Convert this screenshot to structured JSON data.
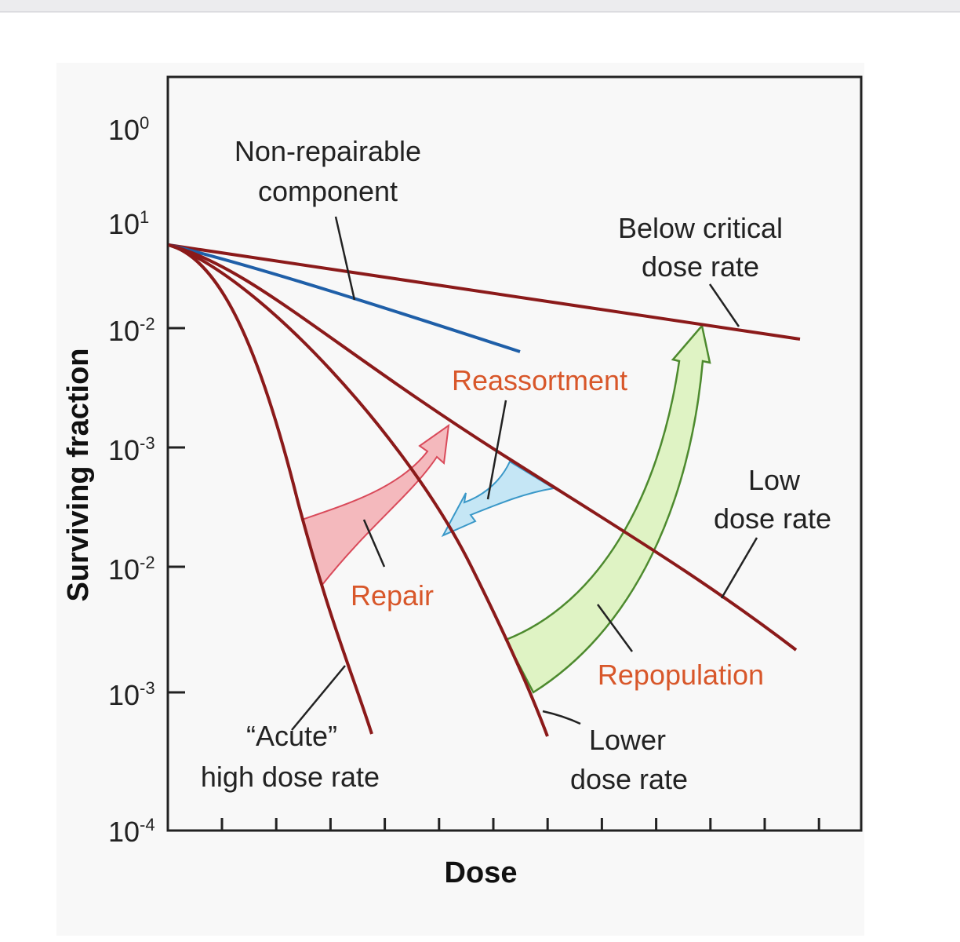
{
  "axes": {
    "ylabel": "Surviving fraction",
    "xlabel": "Dose",
    "y_ticks": [
      {
        "base": "10",
        "exp": "0"
      },
      {
        "base": "10",
        "exp": "1"
      },
      {
        "base": "10",
        "exp": "-2"
      },
      {
        "base": "10",
        "exp": "-3"
      },
      {
        "base": "10",
        "exp": "-2"
      },
      {
        "base": "10",
        "exp": "-3"
      },
      {
        "base": "10",
        "exp": "-4"
      }
    ],
    "scale": "log"
  },
  "curves": {
    "acute": {
      "line1": "“Acute”",
      "line2": "high dose rate",
      "color": "#8b1a1a"
    },
    "lower": {
      "line1": "Lower",
      "line2": "dose rate",
      "color": "#8b1a1a"
    },
    "low": {
      "line1": "Low",
      "line2": "dose rate",
      "color": "#8b1a1a"
    },
    "below": {
      "line1": "Below critical",
      "line2": "dose rate",
      "color": "#8b1a1a"
    },
    "nonrep": {
      "line1": "Non-repairable",
      "line2": "component",
      "color": "#1f5fa8"
    }
  },
  "processes": {
    "repair": {
      "label": "Repair",
      "color": "#f4b9bd"
    },
    "reassortment": {
      "label": "Reassortment",
      "color": "#c5e6f5"
    },
    "repopulation": {
      "label": "Repopulation",
      "color": "#dff3c4"
    }
  }
}
